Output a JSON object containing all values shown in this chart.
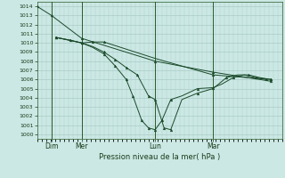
{
  "background_color": "#cce8e4",
  "grid_color": "#aaccc8",
  "line_color": "#1a4a2a",
  "title": "Pression niveau de la mer( hPa )",
  "yticks": [
    1000,
    1001,
    1002,
    1003,
    1004,
    1005,
    1006,
    1007,
    1008,
    1009,
    1010,
    1011,
    1012,
    1013,
    1014
  ],
  "ylim": [
    999.5,
    1014.5
  ],
  "xlim": [
    0,
    11.0
  ],
  "xtick_labels": [
    "Dim",
    "Mer",
    "Lun",
    "Mar"
  ],
  "xtick_positions": [
    0.65,
    2.0,
    5.3,
    7.9
  ],
  "vline_positions": [
    0.65,
    2.0,
    5.3,
    7.9
  ],
  "series": [
    {
      "x": [
        0.0,
        0.65,
        2.0,
        5.3,
        7.9,
        10.5
      ],
      "y": [
        1014.0,
        1013.0,
        1010.5,
        1008.0,
        1006.8,
        1005.8
      ],
      "markers_x": [
        0.0,
        0.65,
        2.0,
        5.3,
        7.9,
        10.5
      ],
      "markers_y": [
        1014.0,
        1013.0,
        1010.5,
        1008.0,
        1006.8,
        1005.8
      ]
    },
    {
      "x": [
        0.85,
        1.5,
        2.0,
        2.5,
        3.0,
        5.3,
        7.9,
        10.5
      ],
      "y": [
        1010.6,
        1010.3,
        1010.0,
        1010.1,
        1010.1,
        1008.3,
        1006.5,
        1006.0
      ],
      "markers_x": [
        0.85,
        1.5,
        2.5,
        3.0,
        7.9,
        10.5
      ],
      "markers_y": [
        1010.6,
        1010.3,
        1010.1,
        1010.1,
        1006.5,
        1006.0
      ]
    },
    {
      "x": [
        0.85,
        2.0,
        2.5,
        3.0,
        3.5,
        4.0,
        4.5,
        5.0,
        5.3,
        5.7,
        6.0,
        6.5,
        7.2,
        7.9,
        8.5,
        9.0,
        9.5,
        10.0,
        10.5
      ],
      "y": [
        1010.6,
        1010.0,
        1009.6,
        1009.0,
        1008.2,
        1007.3,
        1006.5,
        1004.2,
        1003.8,
        1000.7,
        1000.5,
        1003.8,
        1004.5,
        1005.0,
        1006.2,
        1006.5,
        1006.5,
        1006.2,
        1006.0
      ],
      "markers_x": [
        0.85,
        2.0,
        3.0,
        3.5,
        4.0,
        4.5,
        5.0,
        5.3,
        5.7,
        6.0,
        7.2,
        8.5,
        9.5,
        10.5
      ],
      "markers_y": [
        1010.6,
        1010.0,
        1009.0,
        1008.2,
        1007.3,
        1006.5,
        1004.2,
        1003.8,
        1000.7,
        1000.5,
        1004.5,
        1006.2,
        1006.5,
        1006.0
      ]
    },
    {
      "x": [
        0.85,
        2.0,
        2.5,
        3.0,
        3.5,
        4.0,
        4.3,
        4.7,
        5.0,
        5.3,
        5.6,
        6.0,
        6.5,
        7.2,
        7.9,
        8.3,
        8.8,
        9.3,
        9.8,
        10.3
      ],
      "y": [
        1010.6,
        1010.0,
        1009.5,
        1008.8,
        1007.5,
        1006.0,
        1004.2,
        1001.5,
        1000.7,
        1000.5,
        1001.5,
        1003.8,
        1004.2,
        1005.0,
        1005.1,
        1005.5,
        1006.2,
        1006.5,
        1006.2,
        1006.0
      ],
      "markers_x": [
        0.85,
        2.0,
        3.0,
        3.5,
        4.0,
        4.3,
        4.7,
        5.0,
        5.3,
        5.6,
        6.0,
        7.2,
        7.9,
        8.8,
        9.8,
        10.3
      ],
      "markers_y": [
        1010.6,
        1010.0,
        1008.8,
        1007.5,
        1006.0,
        1004.2,
        1001.5,
        1000.7,
        1000.5,
        1001.5,
        1003.8,
        1005.0,
        1005.1,
        1006.2,
        1006.2,
        1006.0
      ]
    }
  ]
}
